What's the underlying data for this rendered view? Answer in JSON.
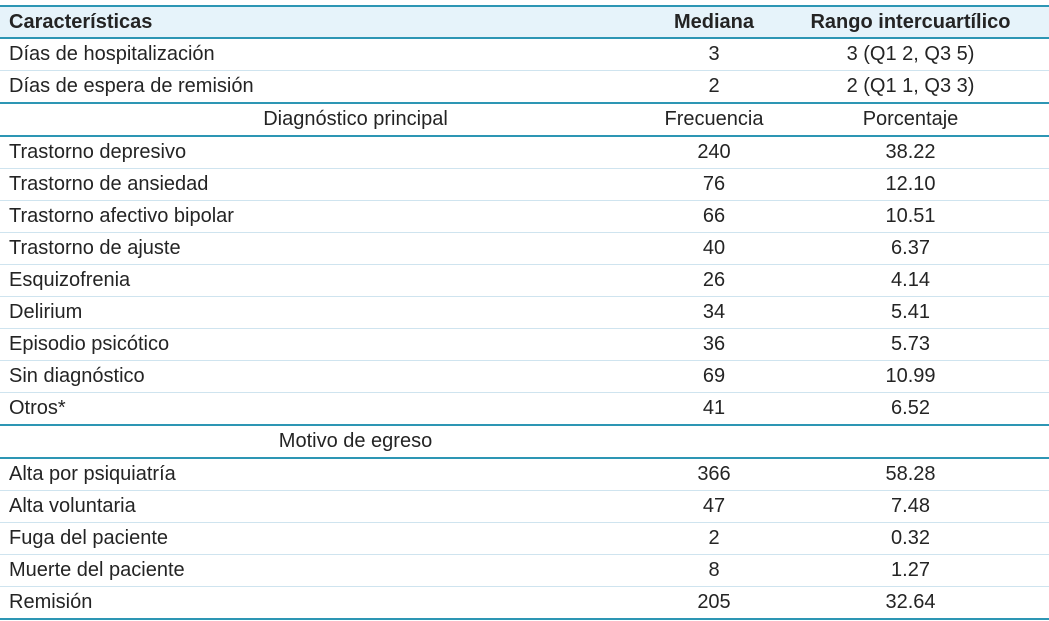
{
  "colors": {
    "teal": "#2d96b4",
    "header-bg": "#e6f3fa",
    "sep": "#cfe4ef",
    "text": "#242424"
  },
  "table": {
    "columns": [
      "Características",
      "Mediana",
      "Rango intercuartílico"
    ],
    "sections": [
      {
        "rows": [
          {
            "label": "Días de hospitalización",
            "col2": "3",
            "col3": "3 (Q1 2, Q3 5)"
          },
          {
            "label": "Días de espera de remisión",
            "col2": "2",
            "col3": "2 (Q1 1, Q3 3)"
          }
        ]
      },
      {
        "header": {
          "label": "Diagnóstico principal",
          "col2": "Frecuencia",
          "col3": "Porcentaje"
        },
        "rows": [
          {
            "label": "Trastorno depresivo",
            "col2": "240",
            "col3": "38.22"
          },
          {
            "label": "Trastorno de ansiedad",
            "col2": "76",
            "col3": "12.10"
          },
          {
            "label": "Trastorno afectivo bipolar",
            "col2": "66",
            "col3": "10.51"
          },
          {
            "label": "Trastorno de ajuste",
            "col2": "40",
            "col3": "6.37"
          },
          {
            "label": "Esquizofrenia",
            "col2": "26",
            "col3": "4.14"
          },
          {
            "label": "Delirium",
            "col2": "34",
            "col3": "5.41"
          },
          {
            "label": "Episodio psicótico",
            "col2": "36",
            "col3": "5.73"
          },
          {
            "label": "Sin diagnóstico",
            "col2": "69",
            "col3": "10.99"
          },
          {
            "label": "Otros*",
            "col2": "41",
            "col3": "6.52"
          }
        ]
      },
      {
        "header": {
          "label": "Motivo de egreso",
          "col2": "",
          "col3": ""
        },
        "rows": [
          {
            "label": "Alta por psiquiatría",
            "col2": "366",
            "col3": "58.28"
          },
          {
            "label": "Alta voluntaria",
            "col2": "47",
            "col3": "7.48"
          },
          {
            "label": "Fuga del paciente",
            "col2": "2",
            "col3": "0.32"
          },
          {
            "label": "Muerte del paciente",
            "col2": "8",
            "col3": "1.27"
          },
          {
            "label": "Remisión",
            "col2": "205",
            "col3": "32.64"
          }
        ]
      }
    ]
  }
}
